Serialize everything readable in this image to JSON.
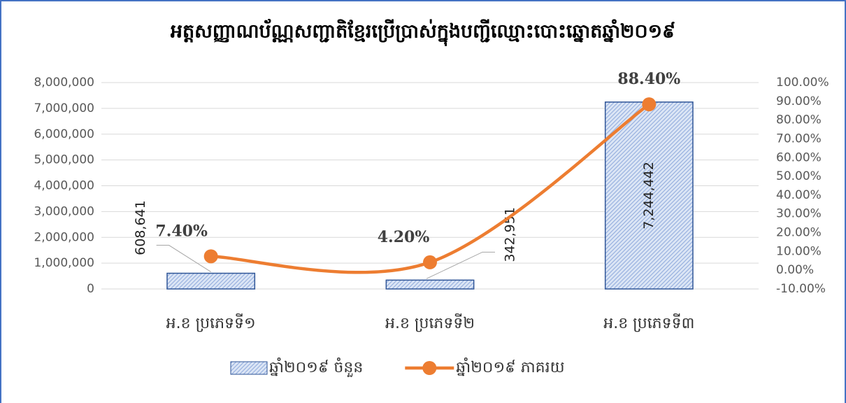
{
  "chart_data": {
    "type": "bar",
    "title": "អត្តសញ្ញាណប័ណ្ណសញ្ជាតិខ្មែរប្រើប្រាស់ក្នុងបញ្ជីឈ្មោះបោះឆ្នោតឆ្នាំ២០១៩",
    "categories": [
      "អ.ខ ប្រភេទទី១",
      "អ.ខ ប្រភេទទី២",
      "អ.ខ ប្រភេទទី៣"
    ],
    "series": [
      {
        "name": "ឆ្នាំ២០១៩ ចំនួន",
        "type": "bar",
        "color": "#2f5597",
        "values": [
          608641,
          342951,
          7244442
        ],
        "value_labels": [
          "608,641",
          "342,951",
          "7,244,442"
        ]
      },
      {
        "name": "ឆ្នាំ២០១៩ ភាគរយ",
        "type": "line",
        "axis": "y2",
        "color": "#ed7d31",
        "values": [
          7.4,
          4.2,
          88.4
        ],
        "value_labels": [
          "7.40%",
          "4.20%",
          "88.40%"
        ]
      }
    ],
    "ylim": [
      0,
      8000000
    ],
    "yticks": [
      {
        "value": 0,
        "label": "0"
      },
      {
        "value": 1000000,
        "label": "1,000,000"
      },
      {
        "value": 2000000,
        "label": "2,000,000"
      },
      {
        "value": 3000000,
        "label": "3,000,000"
      },
      {
        "value": 4000000,
        "label": "4,000,000"
      },
      {
        "value": 5000000,
        "label": "5,000,000"
      },
      {
        "value": 6000000,
        "label": "6,000,000"
      },
      {
        "value": 7000000,
        "label": "7,000,000"
      },
      {
        "value": 8000000,
        "label": "8,000,000"
      }
    ],
    "y2lim": [
      -10,
      100
    ],
    "y2ticks": [
      {
        "value": -10,
        "label": "-10.00%"
      },
      {
        "value": 0,
        "label": "0.00%"
      },
      {
        "value": 10,
        "label": "10.00%"
      },
      {
        "value": 20,
        "label": "20.00%"
      },
      {
        "value": 30,
        "label": "30.00%"
      },
      {
        "value": 40,
        "label": "40.00%"
      },
      {
        "value": 50,
        "label": "50.00%"
      },
      {
        "value": 60,
        "label": "60.00%"
      },
      {
        "value": 70,
        "label": "70.00%"
      },
      {
        "value": 80,
        "label": "80.00%"
      },
      {
        "value": 90,
        "label": "90.00%"
      },
      {
        "value": 100,
        "label": "100.00%"
      }
    ],
    "grid": true,
    "legend": "bottom"
  }
}
